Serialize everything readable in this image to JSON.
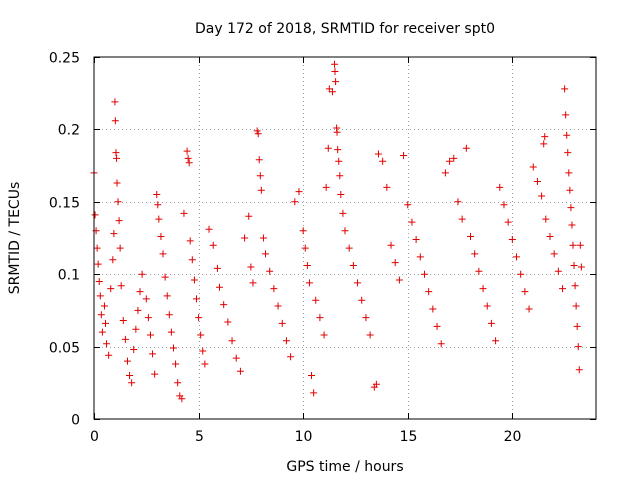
{
  "chart_data": {
    "type": "scatter",
    "title": "Day 172 of 2018, SRMTID for receiver spt0",
    "xlabel": "GPS time / hours",
    "ylabel": "SRMTID / TECUs",
    "xlim": [
      0,
      24
    ],
    "ylim": [
      0,
      0.25
    ],
    "xticks": [
      0,
      5,
      10,
      15,
      20
    ],
    "xtick_labels": [
      "0",
      "5",
      "10",
      "15",
      "20"
    ],
    "yticks": [
      0,
      0.05,
      0.1,
      0.15,
      0.2,
      0.25
    ],
    "ytick_labels": [
      "0",
      "0.05",
      "0.1",
      "0.15",
      "0.2",
      "0.25"
    ],
    "grid": true,
    "marker": "+",
    "color": "#e00000",
    "series": [
      {
        "name": "SRMTID",
        "points": [
          [
            0.0,
            0.17
          ],
          [
            0.05,
            0.141
          ],
          [
            0.1,
            0.13
          ],
          [
            0.15,
            0.118
          ],
          [
            0.2,
            0.107
          ],
          [
            0.25,
            0.095
          ],
          [
            0.3,
            0.085
          ],
          [
            0.35,
            0.072
          ],
          [
            0.4,
            0.06
          ],
          [
            0.5,
            0.078
          ],
          [
            0.55,
            0.066
          ],
          [
            0.6,
            0.052
          ],
          [
            0.7,
            0.044
          ],
          [
            0.8,
            0.09
          ],
          [
            0.9,
            0.11
          ],
          [
            0.95,
            0.128
          ],
          [
            1.0,
            0.219
          ],
          [
            1.02,
            0.206
          ],
          [
            1.05,
            0.184
          ],
          [
            1.08,
            0.18
          ],
          [
            1.1,
            0.163
          ],
          [
            1.15,
            0.15
          ],
          [
            1.2,
            0.137
          ],
          [
            1.25,
            0.118
          ],
          [
            1.3,
            0.092
          ],
          [
            1.4,
            0.068
          ],
          [
            1.5,
            0.055
          ],
          [
            1.6,
            0.04
          ],
          [
            1.7,
            0.03
          ],
          [
            1.8,
            0.025
          ],
          [
            1.9,
            0.048
          ],
          [
            2.0,
            0.062
          ],
          [
            2.1,
            0.075
          ],
          [
            2.2,
            0.088
          ],
          [
            2.3,
            0.1
          ],
          [
            2.5,
            0.083
          ],
          [
            2.6,
            0.07
          ],
          [
            2.7,
            0.058
          ],
          [
            2.8,
            0.045
          ],
          [
            2.9,
            0.031
          ],
          [
            3.0,
            0.155
          ],
          [
            3.05,
            0.148
          ],
          [
            3.1,
            0.138
          ],
          [
            3.2,
            0.126
          ],
          [
            3.3,
            0.114
          ],
          [
            3.4,
            0.098
          ],
          [
            3.5,
            0.085
          ],
          [
            3.6,
            0.072
          ],
          [
            3.7,
            0.06
          ],
          [
            3.8,
            0.049
          ],
          [
            3.9,
            0.038
          ],
          [
            4.0,
            0.025
          ],
          [
            4.1,
            0.016
          ],
          [
            4.2,
            0.014
          ],
          [
            4.3,
            0.142
          ],
          [
            4.45,
            0.185
          ],
          [
            4.5,
            0.18
          ],
          [
            4.55,
            0.177
          ],
          [
            4.6,
            0.123
          ],
          [
            4.7,
            0.11
          ],
          [
            4.8,
            0.096
          ],
          [
            4.9,
            0.083
          ],
          [
            5.0,
            0.07
          ],
          [
            5.1,
            0.058
          ],
          [
            5.2,
            0.047
          ],
          [
            5.3,
            0.038
          ],
          [
            5.5,
            0.131
          ],
          [
            5.7,
            0.12
          ],
          [
            5.9,
            0.104
          ],
          [
            6.0,
            0.091
          ],
          [
            6.2,
            0.079
          ],
          [
            6.4,
            0.067
          ],
          [
            6.6,
            0.054
          ],
          [
            6.8,
            0.042
          ],
          [
            7.0,
            0.033
          ],
          [
            7.2,
            0.125
          ],
          [
            7.4,
            0.14
          ],
          [
            7.5,
            0.105
          ],
          [
            7.6,
            0.094
          ],
          [
            7.8,
            0.199
          ],
          [
            7.85,
            0.197
          ],
          [
            7.9,
            0.179
          ],
          [
            7.95,
            0.168
          ],
          [
            8.0,
            0.158
          ],
          [
            8.1,
            0.125
          ],
          [
            8.2,
            0.114
          ],
          [
            8.4,
            0.102
          ],
          [
            8.6,
            0.09
          ],
          [
            8.8,
            0.078
          ],
          [
            9.0,
            0.066
          ],
          [
            9.2,
            0.054
          ],
          [
            9.4,
            0.043
          ],
          [
            9.6,
            0.15
          ],
          [
            9.8,
            0.157
          ],
          [
            10.0,
            0.13
          ],
          [
            10.1,
            0.118
          ],
          [
            10.2,
            0.106
          ],
          [
            10.3,
            0.094
          ],
          [
            10.4,
            0.03
          ],
          [
            10.5,
            0.018
          ],
          [
            10.6,
            0.082
          ],
          [
            10.8,
            0.07
          ],
          [
            11.0,
            0.058
          ],
          [
            11.1,
            0.16
          ],
          [
            11.2,
            0.187
          ],
          [
            11.25,
            0.228
          ],
          [
            11.4,
            0.226
          ],
          [
            11.5,
            0.245
          ],
          [
            11.52,
            0.24
          ],
          [
            11.55,
            0.233
          ],
          [
            11.6,
            0.201
          ],
          [
            11.62,
            0.198
          ],
          [
            11.65,
            0.186
          ],
          [
            11.7,
            0.178
          ],
          [
            11.75,
            0.168
          ],
          [
            11.8,
            0.155
          ],
          [
            11.9,
            0.142
          ],
          [
            12.0,
            0.13
          ],
          [
            12.2,
            0.118
          ],
          [
            12.4,
            0.106
          ],
          [
            12.6,
            0.094
          ],
          [
            12.8,
            0.082
          ],
          [
            13.0,
            0.07
          ],
          [
            13.2,
            0.058
          ],
          [
            13.4,
            0.022
          ],
          [
            13.5,
            0.024
          ],
          [
            13.6,
            0.183
          ],
          [
            13.8,
            0.178
          ],
          [
            14.0,
            0.16
          ],
          [
            14.2,
            0.12
          ],
          [
            14.4,
            0.108
          ],
          [
            14.6,
            0.096
          ],
          [
            14.8,
            0.182
          ],
          [
            15.0,
            0.148
          ],
          [
            15.2,
            0.136
          ],
          [
            15.4,
            0.124
          ],
          [
            15.6,
            0.112
          ],
          [
            15.8,
            0.1
          ],
          [
            16.0,
            0.088
          ],
          [
            16.2,
            0.076
          ],
          [
            16.4,
            0.064
          ],
          [
            16.6,
            0.052
          ],
          [
            16.8,
            0.17
          ],
          [
            17.0,
            0.178
          ],
          [
            17.2,
            0.18
          ],
          [
            17.4,
            0.15
          ],
          [
            17.6,
            0.138
          ],
          [
            17.8,
            0.187
          ],
          [
            18.0,
            0.126
          ],
          [
            18.2,
            0.114
          ],
          [
            18.4,
            0.102
          ],
          [
            18.6,
            0.09
          ],
          [
            18.8,
            0.078
          ],
          [
            19.0,
            0.066
          ],
          [
            19.2,
            0.054
          ],
          [
            19.4,
            0.16
          ],
          [
            19.6,
            0.148
          ],
          [
            19.8,
            0.136
          ],
          [
            20.0,
            0.124
          ],
          [
            20.2,
            0.112
          ],
          [
            20.4,
            0.1
          ],
          [
            20.6,
            0.088
          ],
          [
            20.8,
            0.076
          ],
          [
            21.0,
            0.174
          ],
          [
            21.2,
            0.164
          ],
          [
            21.4,
            0.154
          ],
          [
            21.5,
            0.19
          ],
          [
            21.55,
            0.195
          ],
          [
            21.6,
            0.138
          ],
          [
            21.8,
            0.126
          ],
          [
            22.0,
            0.114
          ],
          [
            22.2,
            0.102
          ],
          [
            22.4,
            0.09
          ],
          [
            22.5,
            0.228
          ],
          [
            22.55,
            0.21
          ],
          [
            22.6,
            0.196
          ],
          [
            22.65,
            0.184
          ],
          [
            22.7,
            0.17
          ],
          [
            22.75,
            0.158
          ],
          [
            22.8,
            0.146
          ],
          [
            22.85,
            0.134
          ],
          [
            22.9,
            0.12
          ],
          [
            22.95,
            0.106
          ],
          [
            23.0,
            0.092
          ],
          [
            23.05,
            0.078
          ],
          [
            23.1,
            0.064
          ],
          [
            23.15,
            0.05
          ],
          [
            23.2,
            0.034
          ],
          [
            23.25,
            0.12
          ],
          [
            23.3,
            0.105
          ]
        ]
      }
    ]
  }
}
